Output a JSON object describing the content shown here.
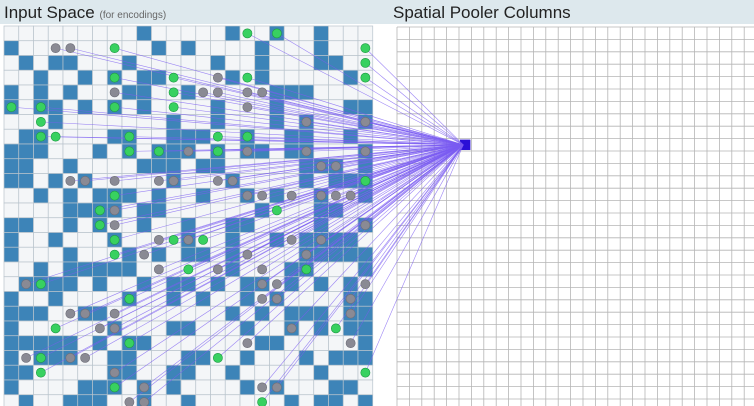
{
  "input_panel": {
    "title": "Input Space",
    "subtitle": "(for encodings)"
  },
  "columns_panel": {
    "title": "Spatial Pooler Columns"
  },
  "colors": {
    "header_bg": "#dde8ed",
    "active_input": "#3d84b8",
    "inactive_input": "#f4f6f8",
    "input_grid_line": "#b9c4cc",
    "column_grid_line": "#b5b5b5",
    "connected_synapse": "#38d160",
    "potential_synapse": "#8a8a94",
    "link": "#7b5cf2",
    "selected_column": "#2a0fd6"
  },
  "input_grid": {
    "rows": 26,
    "cols": 25,
    "active": [
      "0000000001000001001001000",
      "1000000000101000010001000",
      "0101100010000010010001100",
      "0010010101100001010000010",
      "1010100011001000001110000",
      "1011010101000010001000011",
      "0001000000010010001010001",
      "0110000110011100100110010",
      "1110001010111010110110001",
      "1100100001110110000011101",
      "1101010000010001000010111",
      "0010101110100100101001001",
      "0000111101100000010001100",
      "1100101001001001100001001",
      "1001000100001001001011110",
      "1000100010101101000011111",
      "0010111110000001000110001",
      "0111101001011010110101010",
      "1001000010010100101000011",
      "1110011000000001010111011",
      "1000000100011000100101011",
      "1111101011000000011000001",
      "1011100110001100100010111",
      "1100000110011001000001000",
      "1000011101010000101000110",
      "0100111001001000000101101"
    ],
    "synapses": [
      "0000000000000000c0c000000",
      "000pp00c0000000000000000c",
      "000000000000000000000000c",
      "0000000c000c00p0c0000000c",
      "0000000p000c0pp0pp0000000",
      "c0c0000c000c0000p00000000",
      "00c00000000000000000p000p",
      "00cc0000c00000c0c00000000",
      "00000000c0c0p0c0p000p000p",
      "000000000000000000000pp00",
      "0000pp0p00pp00pp00000000c",
      "0000000c00000000pp0p0ppp0",
      "000000cp0000000000c000000",
      "000000cp0000000000000000p",
      "0000000c00pcpc00000p0p000",
      "0000000c0p000000p000p0000",
      "0000000000p0c0p00p00c0000",
      "0pc00000000000000pp00000p",
      "00000000c00000000pp0000p0",
      "0000pp0p000000000000000p0",
      "000c00pp00000000000p00c00",
      "00000000c0000000p000000p0",
      "0pc0pp00000000c0000000000",
      "00c0000p0000000000000000c",
      "0000000c0p0000000pp000000",
      "00000000pp0000000c0000000"
    ]
  },
  "column_grid": {
    "rows": 31,
    "cols": 39,
    "selected": {
      "row": 9,
      "col": 5
    }
  }
}
